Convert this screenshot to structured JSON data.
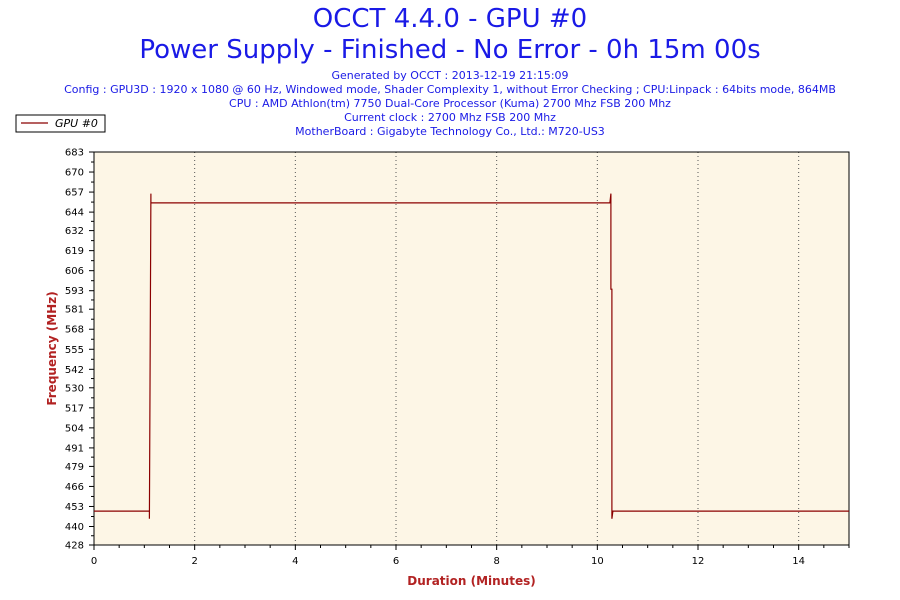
{
  "header": {
    "title": "OCCT 4.4.0 - GPU #0",
    "subtitle": "Power Supply - Finished - No Error - 0h 15m 00s",
    "info_lines": [
      "Generated by OCCT : 2013-12-19 21:15:09",
      "Config : GPU3D : 1920 x 1080 @ 60 Hz, Windowed mode, Shader Complexity 1, without Error Checking ; CPU:Linpack : 64bits mode, 864MB",
      "CPU : AMD Athlon(tm) 7750 Dual-Core Processor (Kuma) 2700 Mhz FSB 200 Mhz",
      "Current clock : 2700 Mhz FSB 200 Mhz",
      "MotherBoard : Gigabyte Technology Co., Ltd.: M720-US3"
    ]
  },
  "colors": {
    "plot_bg": "#fdf6e6",
    "line": "#8b0000",
    "axis_label": "#b22222",
    "title": "#1a1ae6"
  },
  "chart_data": {
    "type": "line",
    "title": "OCCT 4.4.0 - GPU #0",
    "xlabel": "Duration (Minutes)",
    "ylabel": "Frequency (MHz)",
    "xlim": [
      0,
      15
    ],
    "ylim": [
      428,
      683
    ],
    "x_ticks": [
      0,
      2,
      4,
      6,
      8,
      10,
      12,
      14
    ],
    "y_ticks": [
      428,
      440,
      453,
      466,
      479,
      491,
      504,
      517,
      530,
      542,
      555,
      568,
      581,
      593,
      606,
      619,
      632,
      644,
      657,
      670,
      683
    ],
    "grid": "vertical-dotted",
    "legend_position": "top-left",
    "series": [
      {
        "name": "GPU #0",
        "x": [
          0,
          1.1,
          1.1,
          1.13,
          1.13,
          1.16,
          10.25,
          10.27,
          10.27,
          10.29,
          10.29,
          10.31,
          10.31,
          15
        ],
        "y": [
          450,
          450,
          445,
          656,
          650,
          650,
          650,
          656,
          594,
          594,
          445,
          450,
          450,
          450
        ]
      }
    ]
  }
}
